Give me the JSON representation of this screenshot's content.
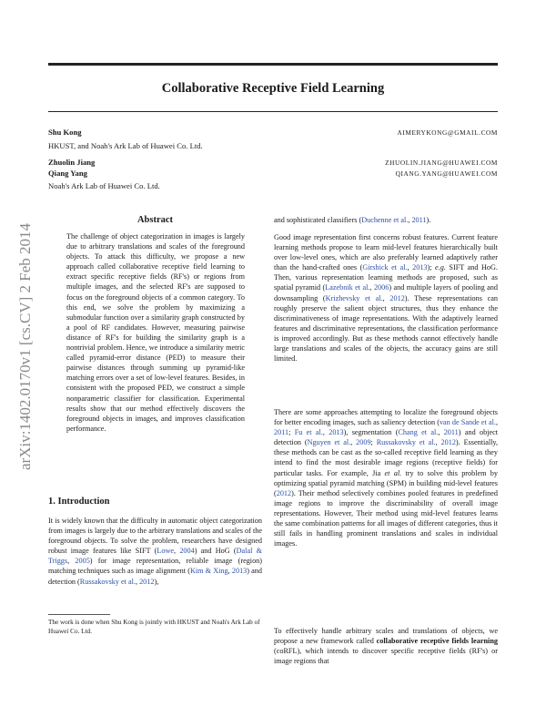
{
  "header": {
    "title": "Collaborative Receptive Field Learning"
  },
  "authors": [
    {
      "name": "Shu Kong",
      "email": "AIMERYKONG@GMAIL.COM"
    },
    {
      "affiliation": "HKUST, and Noah's Ark Lab of Huawei Co. Ltd."
    },
    {
      "name": "Zhuolin Jiang",
      "email": "ZHUOLIN.JIANG@HUAWEI.COM"
    },
    {
      "name": "Qiang Yang",
      "email": "QIANG.YANG@HUAWEI.COM"
    },
    {
      "affiliation": "Noah's Ark Lab of Huawei Co. Ltd."
    }
  ],
  "sidebar": {
    "arxiv_id": "arXiv:1402.0170v1  [cs.CV]  2 Feb 2014"
  },
  "abstract": {
    "heading": "Abstract",
    "text": "The challenge of object categorization in images is largely due to arbitrary translations and scales of the foreground objects. To attack this difficulty, we propose a new approach called collaborative receptive field learning to extract specific receptive fields (RF's) or regions from multiple images, and the selected RF's are supposed to focus on the foreground objects of a common category. To this end, we solve the problem by maximizing a submodular function over a similarity graph constructed by a pool of RF candidates. However, measuring pairwise distance of RF's for building the similarity graph is a nontrivial problem. Hence, we introduce a similarity metric called pyramid-error distance (PED) to measure their pairwise distances through summing up pyramid-like matching errors over a set of low-level features. Besides, in consistent with the proposed PED, we construct a simple nonparametric classifier for classification. Experimental results show that our method effectively discovers the foreground objects in images, and improves classification performance."
  },
  "section1": {
    "heading": "1. Introduction",
    "para1": {
      "t1": "It is widely known that the difficulty in automatic object categorization from images is largely due to the arbitrary translations and scales of the foreground objects. To solve the problem, researchers have designed robust image features like SIFT (",
      "c1": "Lowe",
      "t2": ", ",
      "c2": "2004",
      "t3": ") and HoG (",
      "c3": "Dalal & Triggs",
      "t4": ", ",
      "c4": "2005",
      "t5": ") for image representation, reliable image (region) matching techniques such as image alignment (",
      "c5": "Kim & Xing",
      "t6": ", ",
      "c6": "2013",
      "t7": ") and detection (",
      "c7": "Russakovsky et al.",
      "t8": ", ",
      "c8": "2012",
      "t9": "),"
    }
  },
  "footnote": {
    "text": "The work is done when Shu Kong is jointly with HKUST and Noah's Ark Lab of Huawei Co. Ltd."
  },
  "right_column": {
    "cont": {
      "t1": "and sophisticated classifiers (",
      "c1": "Duchenne et al.",
      "t2": ", ",
      "c2": "2011",
      "t3": ")."
    },
    "para2": {
      "t1": "Good image representation first concerns robust features. Current feature learning methods propose to learn mid-level features hierarchically built over low-level ones, which are also preferably learned adaptively rather than the hand-crafted ones (",
      "c1": "Girshick et al.",
      "t2": ", ",
      "c2": "2013",
      "t3": "); ",
      "em1": "e.g.",
      "t4": " SIFT and HoG. Then, various representation learning methods are proposed, such as spatial pyramid (",
      "c3": "Lazebnik et al.",
      "t5": ", ",
      "c4": "2006",
      "t6": ") and multiple layers of pooling and downsampling (",
      "c5": "Krizhevsky et al.",
      "t7": ", ",
      "c6": "2012",
      "t8": "). These representations can roughly preserve the salient object structures, thus they enhance the discriminativeness of image representations. With the adaptively learned features and discriminative representations, the classification performance is improved accordingly. But as these methods cannot effectively handle large translations and scales of the objects, the accuracy gains are still limited."
    },
    "para3": {
      "t1": "There are some approaches attempting to localize the foreground objects for better encoding images, such as saliency detection (",
      "c1": "van de Sande et al.",
      "t2": ", ",
      "c2": "2011",
      "t3": "; ",
      "c3": "Fu et al.",
      "t4": ", ",
      "c4": "2013",
      "t5": "), segmentation (",
      "c5": "Chang et al.",
      "t6": ", ",
      "c6": "2011",
      "t7": ") and object detection (",
      "c7": "Nguyen et al.",
      "t8": ", ",
      "c8": "2009",
      "t9": "; ",
      "c9": "Russakovsky et al.",
      "t10": ", ",
      "c10": "2012",
      "t11": "). Essentially, these methods can be cast as the so-called receptive field learning as they intend to find the most desirable image regions (receptive fields) for particular tasks. For example, Jia ",
      "em1": "et al.",
      "t12": " try to solve this problem by optimizing spatial pyramid matching (SPM) in building mid-level features (",
      "c11": "2012",
      "t13": "). Their method selectively combines pooled features in predefined image regions to improve the discriminability of overall image representations. However, Their method using mid-level features learns the same combination patterns for all images of different categories, thus it still fails in handling prominent translations and scales in individual images."
    },
    "para4": {
      "t1": "To effectively handle arbitrary scales and translations of objects, we propose a new framework called ",
      "b1": "collaborative receptive fields learning",
      "t2": " (coRFL), which intends to discover specific receptive fields (RF's) or image regions that"
    }
  }
}
